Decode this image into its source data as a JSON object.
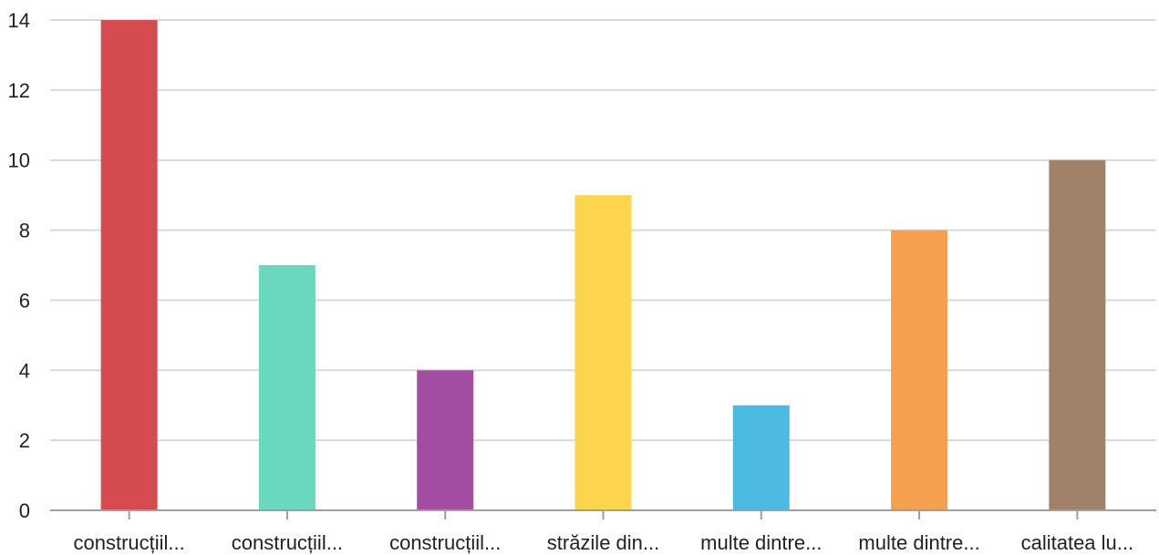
{
  "chart_data": {
    "type": "bar",
    "categories": [
      "construcțiil...",
      "construcțiil...",
      "construcțiil...",
      "străzile din...",
      "multe dintre...",
      "multe dintre...",
      "calitatea lu..."
    ],
    "values": [
      14,
      7,
      4,
      9,
      3,
      8,
      10
    ],
    "colors": [
      "#d64b50",
      "#6ad8bf",
      "#a24da2",
      "#fdd44d",
      "#4cbae3",
      "#f4a04e",
      "#a0826a"
    ],
    "ylim": [
      0,
      14
    ],
    "yticks": [
      0,
      2,
      4,
      6,
      8,
      10,
      12,
      14
    ],
    "grid": true,
    "title": "",
    "xlabel": "",
    "ylabel": ""
  }
}
